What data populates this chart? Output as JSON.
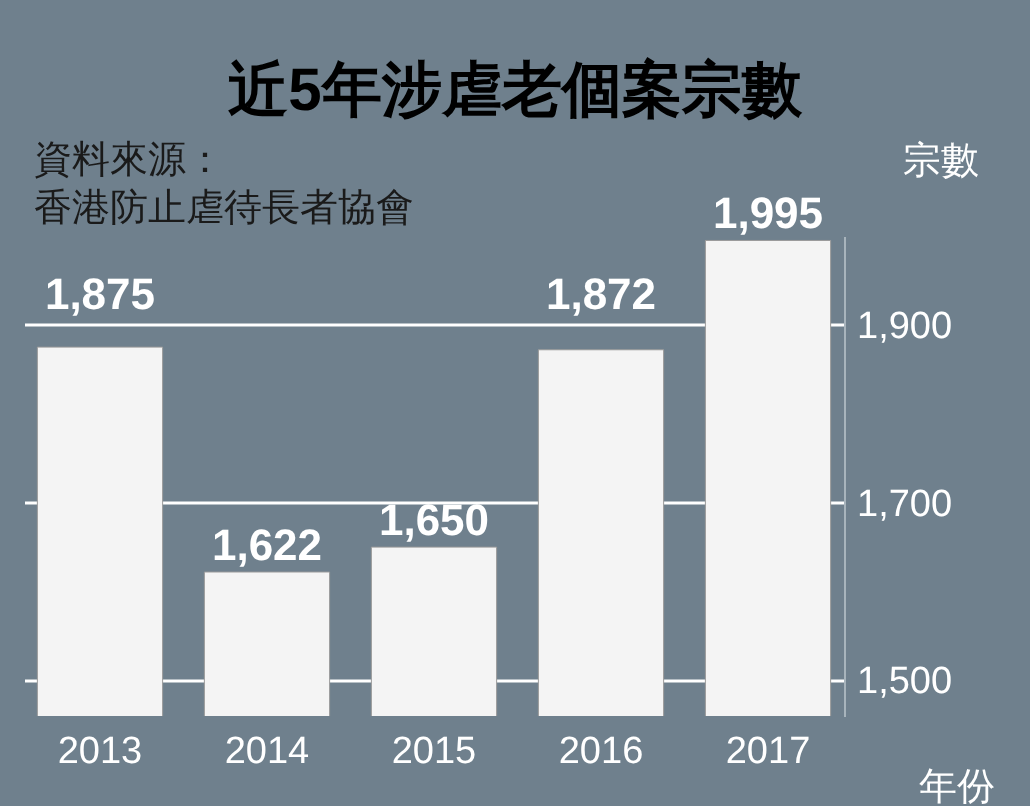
{
  "chart_data": {
    "type": "bar",
    "title": "近5年涉虐老個案宗數",
    "annotations": [
      "資料來源：",
      "香港防止虐待長者協會"
    ],
    "categories": [
      "2013",
      "2014",
      "2015",
      "2016",
      "2017"
    ],
    "values": [
      1875,
      1622,
      1650,
      1872,
      1995
    ],
    "color": "#f4f4f4",
    "ylabel": "宗數",
    "xlabel": "年份",
    "ylim": [
      1460,
      2000
    ],
    "yticks": [
      {
        "value": 1500,
        "label": "1,500"
      },
      {
        "value": 1700,
        "label": "1,700"
      },
      {
        "value": 1900,
        "label": "1,900"
      }
    ],
    "grid": "y",
    "value_labels": [
      "1,875",
      "1,622",
      "1,650",
      "1,872",
      "1,995"
    ]
  }
}
